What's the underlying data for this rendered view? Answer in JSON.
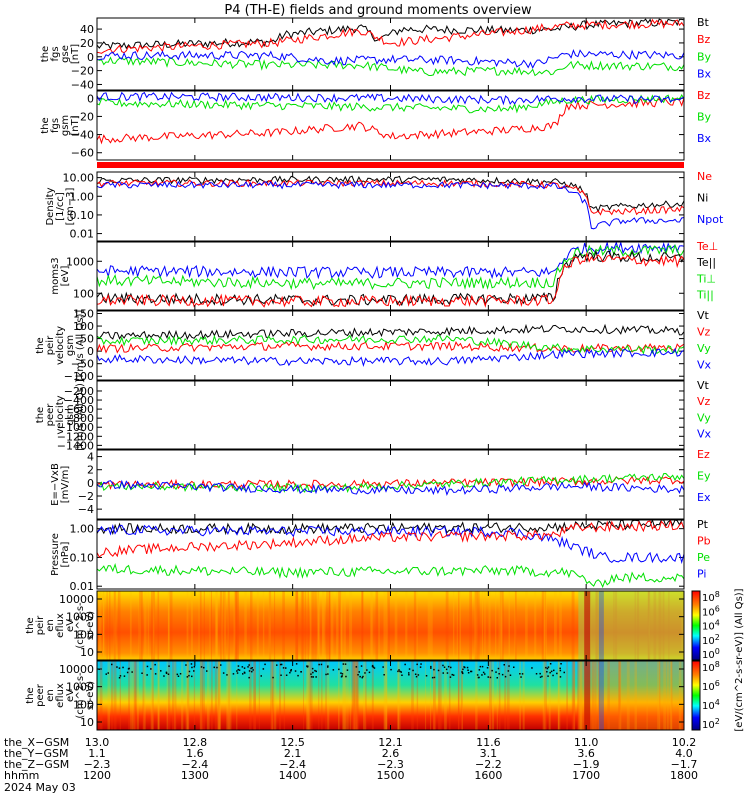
{
  "title": "P4 (TH-E) fields and ground moments overview",
  "colors": {
    "black": "#000000",
    "red": "#ff0000",
    "green": "#00e000",
    "blue": "#0000ff"
  },
  "chart_data": [
    {
      "type": "line",
      "ylabel": [
        "the",
        "fgs",
        "gse",
        "[nT]"
      ],
      "yticks": [
        "40",
        "20",
        "0",
        "−20",
        "−40"
      ],
      "ylim": [
        -48,
        56
      ],
      "legend": [
        "Bt",
        "Bz",
        "By",
        "Bx"
      ],
      "series": [
        {
          "name": "Bt",
          "color": "#000000",
          "points": [
            [
              0,
              15
            ],
            [
              0.3,
              22
            ],
            [
              0.32,
              32
            ],
            [
              0.45,
              42
            ],
            [
              0.48,
              25
            ],
            [
              0.52,
              40
            ],
            [
              0.7,
              38
            ],
            [
              0.78,
              40
            ],
            [
              0.83,
              46
            ],
            [
              0.9,
              48
            ],
            [
              1,
              50
            ]
          ]
        },
        {
          "name": "Bz",
          "color": "#ff0000",
          "points": [
            [
              0,
              10
            ],
            [
              0.3,
              20
            ],
            [
              0.45,
              38
            ],
            [
              0.5,
              20
            ],
            [
              0.7,
              36
            ],
            [
              0.8,
              45
            ],
            [
              0.9,
              47
            ],
            [
              1,
              48
            ]
          ]
        },
        {
          "name": "By",
          "color": "#00e000",
          "points": [
            [
              0,
              -5
            ],
            [
              0.3,
              -12
            ],
            [
              0.45,
              -12
            ],
            [
              0.55,
              -22
            ],
            [
              0.7,
              -20
            ],
            [
              0.78,
              -22
            ],
            [
              0.8,
              -12
            ],
            [
              1,
              -14
            ]
          ]
        },
        {
          "name": "Bx",
          "color": "#0000ff",
          "points": [
            [
              0,
              2
            ],
            [
              0.3,
              2
            ],
            [
              0.4,
              -6
            ],
            [
              0.5,
              -4
            ],
            [
              0.6,
              -5
            ],
            [
              0.75,
              -10
            ],
            [
              0.8,
              4
            ],
            [
              1,
              2
            ]
          ]
        }
      ]
    },
    {
      "type": "line",
      "ylabel": [
        "the",
        "fgs",
        "gsm",
        "[nT]"
      ],
      "yticks": [
        "0",
        "−20",
        "−40",
        "−60"
      ],
      "ylim": [
        -68,
        8
      ],
      "legend": [
        "Bz",
        "By",
        "Bx"
      ],
      "series": [
        {
          "name": "Bz",
          "color": "#ff0000",
          "points": [
            [
              0,
              -45
            ],
            [
              0.3,
              -38
            ],
            [
              0.45,
              -30
            ],
            [
              0.5,
              -42
            ],
            [
              0.7,
              -35
            ],
            [
              0.78,
              -30
            ],
            [
              0.8,
              -8
            ],
            [
              1,
              -4
            ]
          ]
        },
        {
          "name": "By",
          "color": "#00e000",
          "points": [
            [
              0,
              -5
            ],
            [
              0.3,
              -8
            ],
            [
              0.5,
              -10
            ],
            [
              0.7,
              -12
            ],
            [
              0.8,
              -2
            ],
            [
              1,
              0
            ]
          ]
        },
        {
          "name": "Bx",
          "color": "#0000ff",
          "points": [
            [
              0,
              2
            ],
            [
              0.3,
              1
            ],
            [
              0.5,
              0
            ],
            [
              0.7,
              -2
            ],
            [
              0.8,
              0
            ],
            [
              1,
              -2
            ]
          ]
        }
      ]
    },
    {
      "type": "line",
      "ylabel": [
        "Density",
        "[1/cc]",
        "[cm−3]"
      ],
      "yticks": [
        "10.00",
        "1.00",
        "0.10",
        "0.01"
      ],
      "ylog": true,
      "ylim": [
        0.004,
        20
      ],
      "legend": [
        "Ne",
        "Ni",
        "Npot"
      ],
      "series": [
        {
          "name": "Ni",
          "color": "#000000",
          "points": [
            [
              0,
              7
            ],
            [
              0.4,
              8
            ],
            [
              0.6,
              8
            ],
            [
              0.78,
              6
            ],
            [
              0.82,
              3
            ],
            [
              0.84,
              0.2
            ],
            [
              0.9,
              0.3
            ],
            [
              1,
              0.4
            ]
          ]
        },
        {
          "name": "Ne",
          "color": "#ff0000",
          "points": [
            [
              0,
              5
            ],
            [
              0.4,
              5
            ],
            [
              0.6,
              5
            ],
            [
              0.78,
              4
            ],
            [
              0.82,
              2
            ],
            [
              0.84,
              0.15
            ],
            [
              0.9,
              0.15
            ],
            [
              1,
              0.2
            ]
          ]
        },
        {
          "name": "Npot",
          "color": "#0000ff",
          "points": [
            [
              0,
              4
            ],
            [
              0.4,
              4
            ],
            [
              0.6,
              4
            ],
            [
              0.78,
              3.5
            ],
            [
              0.82,
              1
            ],
            [
              0.84,
              0.02
            ],
            [
              0.9,
              0.05
            ],
            [
              1,
              0.05
            ]
          ]
        }
      ]
    },
    {
      "type": "line",
      "ylabel": [
        "moms3",
        "[eV]"
      ],
      "yticks": [
        "1000",
        "100"
      ],
      "ylog": true,
      "ylim": [
        30,
        4000
      ],
      "legend": [
        "Te⊥",
        "Te||",
        "Ti⊥",
        "Ti||"
      ],
      "series": [
        {
          "name": "Ti⊥",
          "color": "#0000ff",
          "points": [
            [
              0,
              500
            ],
            [
              0.4,
              450
            ],
            [
              0.78,
              450
            ],
            [
              0.82,
              2500
            ],
            [
              1,
              3000
            ]
          ]
        },
        {
          "name": "Ti||",
          "color": "#00e000",
          "points": [
            [
              0,
              250
            ],
            [
              0.4,
              200
            ],
            [
              0.78,
              220
            ],
            [
              0.82,
              2000
            ],
            [
              1,
              2200
            ]
          ]
        },
        {
          "name": "Te||",
          "color": "#000000",
          "points": [
            [
              0,
              70
            ],
            [
              0.4,
              60
            ],
            [
              0.78,
              70
            ],
            [
              0.82,
              1500
            ],
            [
              1,
              1200
            ]
          ]
        },
        {
          "name": "Te⊥",
          "color": "#ff0000",
          "points": [
            [
              0,
              60
            ],
            [
              0.4,
              55
            ],
            [
              0.78,
              60
            ],
            [
              0.82,
              1200
            ],
            [
              1,
              1000
            ]
          ]
        }
      ]
    },
    {
      "type": "line",
      "ylabel": [
        "the",
        "peir",
        "velocity",
        "gsm",
        "[km/s (All Qs)]"
      ],
      "yticks": [
        "150",
        "100",
        "50",
        "0",
        "−50",
        "−100"
      ],
      "ylim": [
        -115,
        160
      ],
      "legend": [
        "Vt",
        "Vz",
        "Vy",
        "Vx"
      ],
      "series": [
        {
          "name": "Vt",
          "color": "#000000",
          "points": [
            [
              0,
              60
            ],
            [
              0.3,
              70
            ],
            [
              0.6,
              80
            ],
            [
              0.8,
              90
            ],
            [
              1,
              80
            ]
          ]
        },
        {
          "name": "Vz",
          "color": "#ff0000",
          "points": [
            [
              0,
              10
            ],
            [
              0.3,
              20
            ],
            [
              0.6,
              20
            ],
            [
              0.8,
              10
            ],
            [
              1,
              15
            ]
          ]
        },
        {
          "name": "Vy",
          "color": "#00e000",
          "points": [
            [
              0,
              40
            ],
            [
              0.3,
              45
            ],
            [
              0.6,
              50
            ],
            [
              0.8,
              10
            ],
            [
              1,
              5
            ]
          ]
        },
        {
          "name": "Vx",
          "color": "#0000ff",
          "points": [
            [
              0,
              -30
            ],
            [
              0.3,
              -40
            ],
            [
              0.6,
              -40
            ],
            [
              0.8,
              -10
            ],
            [
              1,
              -5
            ]
          ]
        }
      ]
    },
    {
      "type": "line",
      "ylabel": [
        "the",
        "peer",
        "velocity",
        "gsm",
        "[km/s (All Qs)]"
      ],
      "yticks": [
        "−200",
        "−400",
        "−600",
        "−800",
        "−1000",
        "−1200",
        "−1400"
      ],
      "ylim": [
        -1480,
        20
      ],
      "legend": [
        "Vt",
        "Vz",
        "Vy",
        "Vx"
      ],
      "series": []
    },
    {
      "type": "line",
      "ylabel": [
        "E=−VxB",
        "[mV/m]"
      ],
      "yticks": [
        "4",
        "2",
        "0",
        "−2",
        "−4"
      ],
      "ylim": [
        -5.5,
        5
      ],
      "legend": [
        "Ez",
        "Ey",
        "Ex"
      ],
      "series": [
        {
          "name": "Ez",
          "color": "#ff0000",
          "points": [
            [
              0,
              -0.3
            ],
            [
              0.4,
              -0.2
            ],
            [
              0.8,
              0.2
            ],
            [
              1,
              0.5
            ]
          ]
        },
        {
          "name": "Ey",
          "color": "#00e000",
          "points": [
            [
              0,
              -0.5
            ],
            [
              0.4,
              -0.8
            ],
            [
              0.8,
              0.5
            ],
            [
              1,
              1
            ]
          ]
        },
        {
          "name": "Ex",
          "color": "#0000ff",
          "points": [
            [
              0,
              -0.2
            ],
            [
              0.35,
              -1
            ],
            [
              0.6,
              -1.2
            ],
            [
              0.8,
              -0.5
            ],
            [
              1,
              -1
            ]
          ]
        }
      ]
    },
    {
      "type": "line",
      "ylabel": [
        "Pressure",
        "[nPa]"
      ],
      "yticks": [
        "1.00",
        "0.10",
        "0.01"
      ],
      "ylog": true,
      "ylim": [
        0.008,
        2
      ],
      "legend": [
        "Pt",
        "Pb",
        "Pe",
        "Pi"
      ],
      "series": [
        {
          "name": "Pt",
          "color": "#000000",
          "points": [
            [
              0,
              1.0
            ],
            [
              0.3,
              1.0
            ],
            [
              0.7,
              1.1
            ],
            [
              0.8,
              1.2
            ],
            [
              1,
              1.5
            ]
          ]
        },
        {
          "name": "Pi",
          "color": "#0000ff",
          "points": [
            [
              0,
              0.9
            ],
            [
              0.3,
              0.8
            ],
            [
              0.7,
              0.8
            ],
            [
              0.82,
              0.2
            ],
            [
              0.86,
              0.1
            ],
            [
              1,
              0.1
            ]
          ]
        },
        {
          "name": "Pb",
          "color": "#ff0000",
          "points": [
            [
              0,
              0.15
            ],
            [
              0.3,
              0.3
            ],
            [
              0.5,
              0.5
            ],
            [
              0.78,
              0.6
            ],
            [
              0.82,
              1.1
            ],
            [
              1,
              1.3
            ]
          ]
        },
        {
          "name": "Pe",
          "color": "#00e000",
          "points": [
            [
              0,
              0.04
            ],
            [
              0.3,
              0.03
            ],
            [
              0.7,
              0.035
            ],
            [
              0.8,
              0.03
            ],
            [
              0.85,
              0.01
            ],
            [
              0.88,
              0.02
            ],
            [
              1,
              0.02
            ]
          ]
        }
      ]
    },
    {
      "type": "heatmap",
      "ylabel": [
        "the",
        "peir",
        "en",
        "eflux",
        "eV",
        "(cm^2-s-",
        "sr-eV)"
      ],
      "yticks": [
        "10000",
        "1000",
        "100",
        "10"
      ],
      "ylog": true
    },
    {
      "type": "heatmap",
      "ylabel": [
        "the",
        "peer",
        "en",
        "eflux",
        "eV",
        "(cm^2-s-",
        "sr-eV)"
      ],
      "yticks": [
        "10000",
        "1000",
        "100",
        "10"
      ],
      "ylog": true
    }
  ],
  "colorbar": {
    "label": "[eV/(cm^2-s-sr-eV)] (All Qs)]",
    "ticks_top": [
      "10^8",
      "10^6",
      "10^4",
      "10^2",
      "10^0"
    ],
    "ticks_bottom": [
      "10^8",
      "10^6",
      "10^4",
      "10^2"
    ]
  },
  "xaxis": {
    "ticks": [
      0,
      0.1667,
      0.3333,
      0.5,
      0.6667,
      0.8333,
      1
    ],
    "rows": [
      {
        "label": "the_X−GSM",
        "values": [
          "13.0",
          "12.8",
          "12.5",
          "12.1",
          "11.6",
          "11.0",
          "10.2"
        ]
      },
      {
        "label": "the_Y−GSM",
        "values": [
          "1.1",
          "1.6",
          "2.1",
          "2.6",
          "3.1",
          "3.6",
          "4.0"
        ]
      },
      {
        "label": "the_Z−GSM",
        "values": [
          "−2.3",
          "−2.4",
          "−2.4",
          "−2.3",
          "−2.2",
          "−1.9",
          "−1.7"
        ]
      },
      {
        "label": "hhmm",
        "values": [
          "1200",
          "1300",
          "1400",
          "1500",
          "1600",
          "1700",
          "1800"
        ]
      }
    ],
    "date": "2024 May 03"
  }
}
